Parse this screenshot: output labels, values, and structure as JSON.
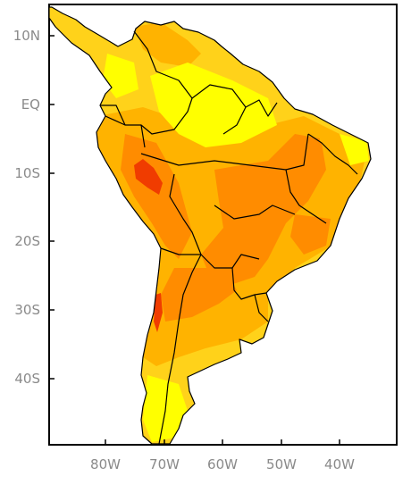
{
  "map": {
    "title": "",
    "lat_labels": [
      "10N",
      "EQ",
      "10S",
      "20S",
      "30S",
      "40S"
    ],
    "lon_labels": [
      "80W",
      "70W",
      "60W",
      "50W",
      "40W"
    ],
    "colors": {
      "background": "#ffffff",
      "frame": "#000000",
      "borders": "#000000",
      "level_1": "#ffff00",
      "level_2": "#ffd21a",
      "level_3": "#ffb300",
      "level_4": "#ff8c00",
      "level_5": "#f03c00"
    }
  }
}
